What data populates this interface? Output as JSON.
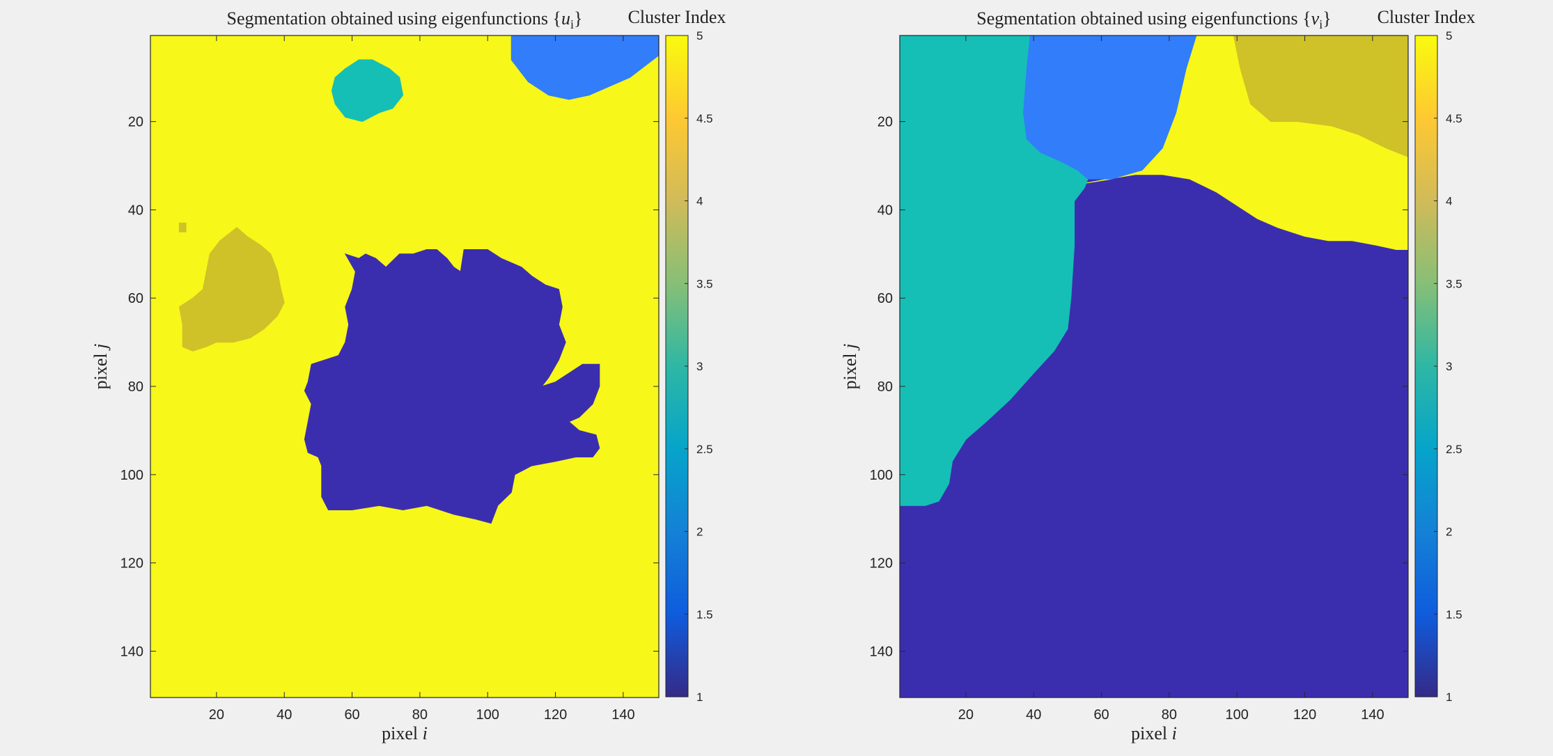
{
  "chart_data": [
    {
      "type": "heatmap",
      "title": "Segmentation obtained using eigenfunctions {u_i}",
      "xlabel": "pixel i",
      "ylabel": "pixel j",
      "xlim": [
        0.5,
        150.5
      ],
      "ylim": [
        0.5,
        150.5
      ],
      "y_direction": "reverse",
      "xticks": [
        20,
        40,
        60,
        80,
        100,
        120,
        140
      ],
      "yticks": [
        20,
        40,
        60,
        80,
        100,
        120,
        140
      ],
      "background_cluster": 5,
      "regions": [
        {
          "cluster": 2,
          "points": [
            [
              107,
              0.5
            ],
            [
              150.5,
              0.5
            ],
            [
              150.5,
              5
            ],
            [
              142,
              10
            ],
            [
              136,
              12
            ],
            [
              130,
              14
            ],
            [
              124,
              15
            ],
            [
              118,
              14
            ],
            [
              112,
              11
            ],
            [
              107,
              6
            ]
          ]
        },
        {
          "cluster": 3,
          "points": [
            [
              55,
              10
            ],
            [
              58,
              8
            ],
            [
              62,
              6
            ],
            [
              66,
              6
            ],
            [
              71,
              8
            ],
            [
              74,
              10
            ],
            [
              75,
              14
            ],
            [
              72,
              17
            ],
            [
              68,
              18
            ],
            [
              63,
              20
            ],
            [
              58,
              19
            ],
            [
              55,
              16
            ],
            [
              54,
              13
            ]
          ]
        },
        {
          "cluster": 4,
          "points": [
            [
              26,
              44
            ],
            [
              29,
              46
            ],
            [
              33,
              48
            ],
            [
              36,
              50
            ],
            [
              38,
              54
            ],
            [
              39,
              58
            ],
            [
              40,
              61
            ],
            [
              38,
              64
            ],
            [
              34,
              67
            ],
            [
              30,
              69
            ],
            [
              25,
              70
            ],
            [
              20,
              70
            ],
            [
              17,
              71
            ],
            [
              13,
              72
            ],
            [
              10,
              71
            ],
            [
              10,
              66
            ],
            [
              9,
              62
            ],
            [
              11,
              61
            ],
            [
              13,
              60
            ],
            [
              16,
              58
            ],
            [
              17,
              54
            ],
            [
              18,
              50
            ],
            [
              21,
              47
            ]
          ]
        },
        {
          "cluster": 4,
          "points": [
            [
              9,
              43
            ],
            [
              11,
              43
            ],
            [
              11,
              45
            ],
            [
              9,
              45
            ]
          ]
        },
        {
          "cluster": 1,
          "points": [
            [
              58,
              50
            ],
            [
              62,
              51
            ],
            [
              64,
              50
            ],
            [
              67,
              51
            ],
            [
              70,
              53
            ],
            [
              74,
              50
            ],
            [
              78,
              50
            ],
            [
              82,
              49
            ],
            [
              85,
              49
            ],
            [
              88,
              51
            ],
            [
              90,
              53
            ],
            [
              92,
              54
            ],
            [
              93,
              49
            ],
            [
              96,
              49
            ],
            [
              100,
              49
            ],
            [
              104,
              51
            ],
            [
              107,
              52
            ],
            [
              110,
              53
            ],
            [
              113,
              55
            ],
            [
              117,
              57
            ],
            [
              121,
              58
            ],
            [
              122,
              62
            ],
            [
              121,
              66
            ],
            [
              123,
              70
            ],
            [
              121,
              74
            ],
            [
              118,
              78
            ],
            [
              116,
              80
            ],
            [
              120,
              79
            ],
            [
              124,
              77
            ],
            [
              128,
              75
            ],
            [
              133,
              75
            ],
            [
              133,
              80
            ],
            [
              131,
              84
            ],
            [
              127,
              87
            ],
            [
              124,
              88
            ],
            [
              127,
              90
            ],
            [
              132,
              91
            ],
            [
              133,
              94
            ],
            [
              131,
              96
            ],
            [
              126,
              96
            ],
            [
              120,
              97
            ],
            [
              113,
              98
            ],
            [
              108,
              100
            ],
            [
              107,
              104
            ],
            [
              103,
              107
            ],
            [
              101,
              111
            ],
            [
              96,
              110
            ],
            [
              90,
              109
            ],
            [
              86,
              108
            ],
            [
              82,
              107
            ],
            [
              75,
              108
            ],
            [
              68,
              107
            ],
            [
              60,
              108
            ],
            [
              53,
              108
            ],
            [
              51,
              105
            ],
            [
              51,
              98
            ],
            [
              50,
              96
            ],
            [
              47,
              95
            ],
            [
              46,
              92
            ],
            [
              47,
              88
            ],
            [
              48,
              84
            ],
            [
              46,
              81
            ],
            [
              47,
              79
            ],
            [
              48,
              75
            ],
            [
              52,
              74
            ],
            [
              56,
              73
            ],
            [
              58,
              70
            ],
            [
              59,
              66
            ],
            [
              58,
              62
            ],
            [
              60,
              58
            ],
            [
              61,
              54
            ]
          ]
        }
      ],
      "colorbar": {
        "label": "Cluster Index",
        "range": [
          1,
          5
        ],
        "ticks": [
          "1",
          "1.5",
          "2",
          "2.5",
          "3",
          "3.5",
          "4",
          "4.5",
          "5"
        ]
      }
    },
    {
      "type": "heatmap",
      "title": "Segmentation obtained using eigenfunctions {v_i}",
      "xlabel": "pixel i",
      "ylabel": "pixel j",
      "xlim": [
        0.5,
        150.5
      ],
      "ylim": [
        0.5,
        150.5
      ],
      "y_direction": "reverse",
      "xticks": [
        20,
        40,
        60,
        80,
        100,
        120,
        140
      ],
      "yticks": [
        20,
        40,
        60,
        80,
        100,
        120,
        140
      ],
      "background_cluster": 1,
      "regions": [
        {
          "cluster": 5,
          "points": [
            [
              55,
              34
            ],
            [
              62,
              33
            ],
            [
              70,
              32
            ],
            [
              78,
              32
            ],
            [
              86,
              33
            ],
            [
              94,
              36
            ],
            [
              100,
              39
            ],
            [
              106,
              42
            ],
            [
              112,
              44
            ],
            [
              120,
              46
            ],
            [
              127,
              47
            ],
            [
              134,
              47
            ],
            [
              141,
              48
            ],
            [
              147,
              49
            ],
            [
              150.5,
              49
            ],
            [
              150.5,
              0.5
            ],
            [
              88,
              0.5
            ],
            [
              85,
              8
            ],
            [
              82,
              18
            ],
            [
              78,
              26
            ],
            [
              72,
              31
            ],
            [
              63,
              33
            ]
          ]
        },
        {
          "cluster": 3,
          "points": [
            [
              0.5,
              0.5
            ],
            [
              39,
              0.5
            ],
            [
              38,
              8
            ],
            [
              37,
              18
            ],
            [
              38,
              24
            ],
            [
              42,
              27
            ],
            [
              48,
              29
            ],
            [
              53,
              31
            ],
            [
              56,
              33
            ],
            [
              55,
              35
            ],
            [
              52,
              38
            ],
            [
              52,
              48
            ],
            [
              51,
              60
            ],
            [
              50,
              67
            ],
            [
              46,
              72
            ],
            [
              40,
              77
            ],
            [
              33,
              83
            ],
            [
              26,
              88
            ],
            [
              20,
              92
            ],
            [
              16,
              97
            ],
            [
              15,
              102
            ],
            [
              12,
              106
            ],
            [
              8,
              107
            ],
            [
              0.5,
              107
            ]
          ]
        },
        {
          "cluster": 2,
          "points": [
            [
              39,
              0.5
            ],
            [
              88,
              0.5
            ],
            [
              85,
              8
            ],
            [
              82,
              18
            ],
            [
              78,
              26
            ],
            [
              72,
              31
            ],
            [
              63,
              33
            ],
            [
              56,
              33
            ],
            [
              53,
              31
            ],
            [
              48,
              29
            ],
            [
              42,
              27
            ],
            [
              38,
              24
            ],
            [
              37,
              18
            ],
            [
              38,
              8
            ]
          ]
        },
        {
          "cluster": 4,
          "points": [
            [
              99,
              0.5
            ],
            [
              150.5,
              0.5
            ],
            [
              150.5,
              28
            ],
            [
              144,
              26
            ],
            [
              136,
              23
            ],
            [
              128,
              21
            ],
            [
              118,
              20
            ],
            [
              110,
              20
            ],
            [
              104,
              16
            ],
            [
              101,
              8
            ]
          ]
        }
      ],
      "colorbar": {
        "label": "Cluster Index",
        "range": [
          1,
          5
        ],
        "ticks": [
          "1",
          "1.5",
          "2",
          "2.5",
          "3",
          "3.5",
          "4",
          "4.5",
          "5"
        ]
      }
    }
  ],
  "colors": {
    "cluster_1": "#3b2eae",
    "cluster_2": "#317dfa",
    "cluster_3": "#15bfb6",
    "cluster_4": "#cfc128",
    "cluster_5": "#f7f719",
    "figure_background": "#f0f0f0",
    "colormap": "parula"
  }
}
